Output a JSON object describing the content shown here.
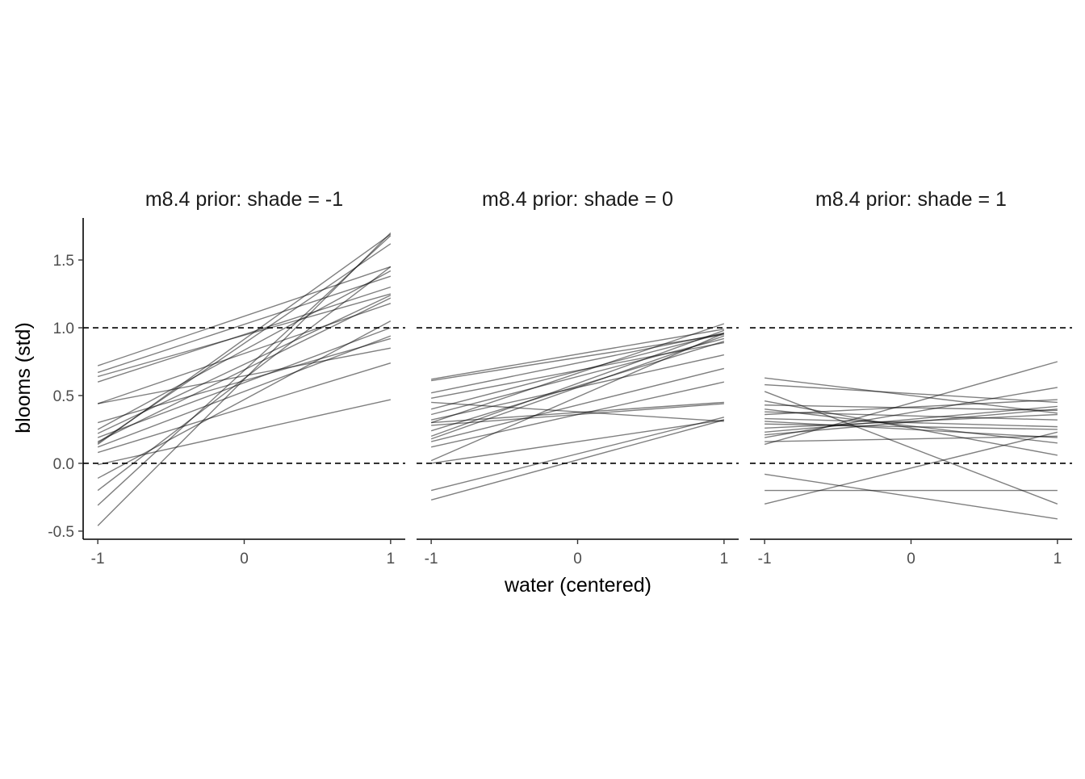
{
  "chart_data": {
    "type": "line",
    "xlabel": "water (centered)",
    "ylabel": "blooms (std)",
    "xlim": [
      -1.1,
      1.1
    ],
    "ylim": [
      -0.56,
      1.81
    ],
    "x_ticks": [
      -1,
      0,
      1
    ],
    "x_tick_labels": [
      "-1",
      "0",
      "1"
    ],
    "y_ticks": [
      -0.5,
      0.0,
      0.5,
      1.0,
      1.5
    ],
    "y_tick_labels": [
      "-0.5",
      "0.0",
      "0.5",
      "1.0",
      "1.5"
    ],
    "reference_lines": [
      0,
      1
    ],
    "reference_line_style": "dashed",
    "grid": false,
    "line_color": "#000000",
    "line_alpha": 0.5,
    "facets": [
      {
        "title": "m8.4 prior: shade = -1",
        "lines": [
          [
            -0.46,
            1.7
          ],
          [
            -0.31,
            1.68
          ],
          [
            -0.2,
            1.45
          ],
          [
            -0.11,
            1.05
          ],
          [
            -0.01,
            0.47
          ],
          [
            0.08,
            0.74
          ],
          [
            0.12,
            0.94
          ],
          [
            0.14,
            1.69
          ],
          [
            0.15,
            1.62
          ],
          [
            0.16,
            1.22
          ],
          [
            0.19,
            1.0
          ],
          [
            0.22,
            1.24
          ],
          [
            0.25,
            1.42
          ],
          [
            0.3,
            0.92
          ],
          [
            0.44,
            0.85
          ],
          [
            0.44,
            1.18
          ],
          [
            0.6,
            1.3
          ],
          [
            0.64,
            1.25
          ],
          [
            0.67,
            1.38
          ],
          [
            0.72,
            1.45
          ]
        ]
      },
      {
        "title": "m8.4 prior: shade = 0",
        "lines": [
          [
            -0.27,
            0.32
          ],
          [
            -0.2,
            0.34
          ],
          [
            0.0,
            0.32
          ],
          [
            0.02,
            0.96
          ],
          [
            0.12,
            0.6
          ],
          [
            0.16,
            0.7
          ],
          [
            0.18,
            0.94
          ],
          [
            0.2,
            0.98
          ],
          [
            0.24,
            0.9
          ],
          [
            0.28,
            0.44
          ],
          [
            0.3,
            1.03
          ],
          [
            0.3,
            0.45
          ],
          [
            0.32,
            0.8
          ],
          [
            0.36,
            0.92
          ],
          [
            0.4,
            0.96
          ],
          [
            0.45,
            0.31
          ],
          [
            0.48,
            0.89
          ],
          [
            0.52,
            0.96
          ],
          [
            0.61,
            0.95
          ],
          [
            0.62,
            0.99
          ]
        ]
      },
      {
        "title": "m8.4 prior: shade = 1",
        "lines": [
          [
            -0.3,
            0.23
          ],
          [
            -0.2,
            -0.2
          ],
          [
            -0.08,
            -0.41
          ],
          [
            0.14,
            0.75
          ],
          [
            0.16,
            0.2
          ],
          [
            0.19,
            0.56
          ],
          [
            0.21,
            0.4
          ],
          [
            0.23,
            0.42
          ],
          [
            0.26,
            0.36
          ],
          [
            0.29,
            0.25
          ],
          [
            0.31,
            0.19
          ],
          [
            0.33,
            0.27
          ],
          [
            0.36,
            0.47
          ],
          [
            0.38,
            0.32
          ],
          [
            0.4,
            0.15
          ],
          [
            0.43,
            0.39
          ],
          [
            0.46,
            0.06
          ],
          [
            0.53,
            -0.3
          ],
          [
            0.58,
            0.45
          ],
          [
            0.63,
            0.37
          ]
        ]
      }
    ]
  }
}
